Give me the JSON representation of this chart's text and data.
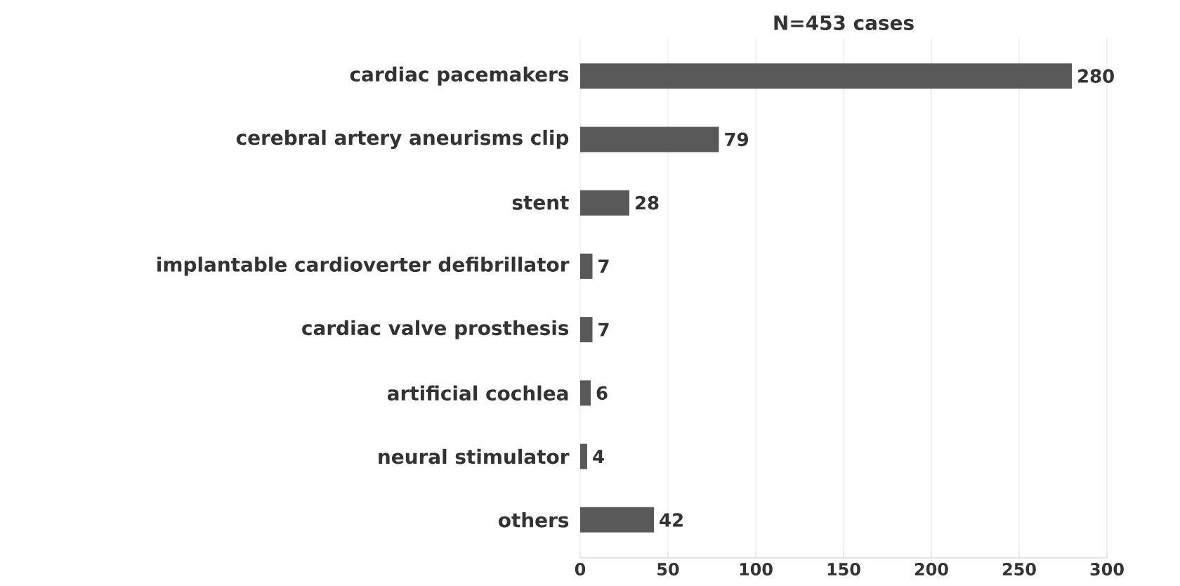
{
  "chart_data": {
    "type": "bar",
    "orientation": "horizontal",
    "title": "N=453 cases",
    "categories": [
      "cardiac pacemakers",
      "cerebral artery aneurisms clip",
      "stent",
      "implantable cardioverter defibrillator",
      "cardiac valve prosthesis",
      "artificial cochlea",
      "neural stimulator",
      "others"
    ],
    "values": [
      280,
      79,
      28,
      7,
      7,
      6,
      4,
      42
    ],
    "color": "#595959",
    "xlim": [
      0,
      300
    ],
    "xticks": [
      0,
      50,
      100,
      150,
      200,
      250,
      300
    ],
    "grid": "x",
    "data_labels": true
  }
}
